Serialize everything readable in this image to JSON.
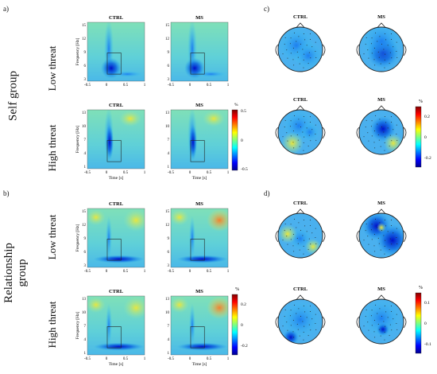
{
  "panels": {
    "a": "a)",
    "b": "b)",
    "c": "c)",
    "d": "d)"
  },
  "groups": {
    "self": "Self group",
    "relationship": "Relationship group"
  },
  "rows": {
    "low": "Low threat",
    "high": "High threat"
  },
  "conditions": {
    "ctrl": "CTRL",
    "ms": "MS"
  },
  "axes": {
    "time_label": "Time [s]",
    "freq_label": "Frequency [Hz]",
    "time_ticks": [
      "-0.5",
      "0",
      "0.5",
      "1"
    ],
    "freq_ticks_low": [
      "15",
      "12",
      "9",
      "6",
      "3"
    ],
    "freq_ticks_high": [
      "13",
      "10",
      "7",
      "4",
      "1"
    ],
    "freq_ticks_rel_high": [
      "13",
      "10",
      "7",
      "4",
      "1"
    ],
    "freq_ticks_rel_low": [
      "15",
      "12",
      "9",
      "6",
      "3"
    ]
  },
  "colorbars": {
    "unit": "%",
    "tf_self": {
      "max": "0.5",
      "mid": "0",
      "min": "-0.5"
    },
    "topo_self": {
      "max": "0.2",
      "mid": "0",
      "min": "-0.2"
    },
    "tf_rel": {
      "max": "0.2",
      "mid": "0",
      "min": "-0.2"
    },
    "topo_rel": {
      "max": "0.1",
      "mid": "0",
      "min": "-0.1"
    }
  }
}
